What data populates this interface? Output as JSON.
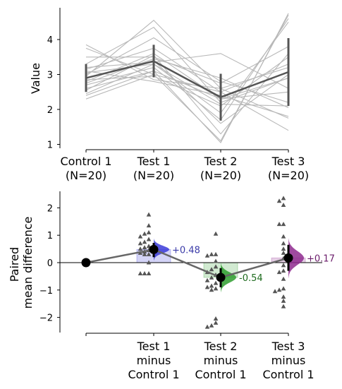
{
  "chart_data": [
    {
      "type": "line",
      "ylabel": "Value",
      "ylim": [
        0.9,
        4.9
      ],
      "yticks": [
        1,
        2,
        3,
        4
      ],
      "groups": [
        {
          "name": "Control 1",
          "n_label": "(N=20)",
          "mean": 2.9,
          "sd_low": 2.5,
          "sd_high": 3.3
        },
        {
          "name": "Test 1",
          "n_label": "(N=20)",
          "mean": 3.38,
          "sd_low": 2.92,
          "sd_high": 3.85
        },
        {
          "name": "Test 2",
          "n_label": "(N=20)",
          "mean": 2.35,
          "sd_low": 1.68,
          "sd_high": 3.02
        },
        {
          "name": "Test 3",
          "n_label": "(N=20)",
          "mean": 3.07,
          "sd_low": 2.1,
          "sd_high": 4.04
        }
      ],
      "paired_lines": [
        [
          2.3,
          3.0,
          2.5,
          1.4
        ],
        [
          2.45,
          3.3,
          2.15,
          2.1
        ],
        [
          2.55,
          3.55,
          1.3,
          3.6
        ],
        [
          2.6,
          3.1,
          1.05,
          4.75
        ],
        [
          2.7,
          3.2,
          1.7,
          4.6
        ],
        [
          2.75,
          3.45,
          2.9,
          2.05
        ],
        [
          2.8,
          3.6,
          2.3,
          2.5
        ],
        [
          2.85,
          2.95,
          2.1,
          3.5
        ],
        [
          2.9,
          3.4,
          1.6,
          3.0
        ],
        [
          2.95,
          4.55,
          2.6,
          3.2
        ],
        [
          3.0,
          4.05,
          2.8,
          2.2
        ],
        [
          3.05,
          3.3,
          1.9,
          4.5
        ],
        [
          3.1,
          2.8,
          2.4,
          1.8
        ],
        [
          3.15,
          3.75,
          2.5,
          3.3
        ],
        [
          3.2,
          3.35,
          3.6,
          2.6
        ],
        [
          3.3,
          4.35,
          2.2,
          2.9
        ],
        [
          3.5,
          3.5,
          2.75,
          3.8
        ],
        [
          3.75,
          3.0,
          1.1,
          4.7
        ],
        [
          3.85,
          2.85,
          2.6,
          1.75
        ],
        [
          2.4,
          3.1,
          2.3,
          2.9
        ]
      ]
    },
    {
      "type": "scatter",
      "ylabel": "Paired\nmean difference",
      "ylim": [
        -2.6,
        2.6
      ],
      "yticks": [
        -2,
        -1,
        0,
        1,
        2
      ],
      "control_point": 0,
      "comparisons": [
        {
          "label": [
            "Test 1",
            "minus",
            "Control 1"
          ],
          "delta": 0.48,
          "delta_label": "+0.48",
          "ci": [
            0.2,
            0.72
          ],
          "color": "#3b3bd9",
          "label_color": "#3a3aa8",
          "diffs": [
            1.75,
            1.35,
            1.1,
            1.05,
            0.95,
            0.85,
            0.75,
            0.7,
            0.6,
            0.55,
            0.5,
            0.45,
            0.4,
            0.35,
            0.3,
            0.3,
            -0.4,
            -0.4,
            -0.4,
            0.0
          ]
        },
        {
          "label": [
            "Test 2",
            "minus",
            "Control 1"
          ],
          "delta": -0.54,
          "delta_label": "-0.54",
          "ci": [
            -0.9,
            -0.2
          ],
          "color": "#2e9e2e",
          "label_color": "#1d6b1d",
          "diffs": [
            1.05,
            0.3,
            0.3,
            0.25,
            0.05,
            -0.15,
            -0.25,
            -0.35,
            -0.45,
            -0.55,
            -0.65,
            -0.75,
            -0.85,
            -0.9,
            -0.95,
            -1.0,
            -2.05,
            -2.2,
            -2.3,
            -2.35
          ]
        },
        {
          "label": [
            "Test 3",
            "minus",
            "Control 1"
          ],
          "delta": 0.17,
          "delta_label": "+0.17",
          "ci": [
            -0.3,
            0.65
          ],
          "color": "#8e2a8e",
          "label_color": "#6b1d6b",
          "diffs": [
            2.35,
            2.25,
            2.1,
            1.4,
            1.4,
            0.95,
            0.7,
            0.5,
            0.35,
            0.15,
            -0.1,
            -0.3,
            -0.35,
            -0.6,
            -0.95,
            -1.0,
            -1.05,
            -1.25,
            -1.4,
            -1.6
          ]
        }
      ]
    }
  ]
}
